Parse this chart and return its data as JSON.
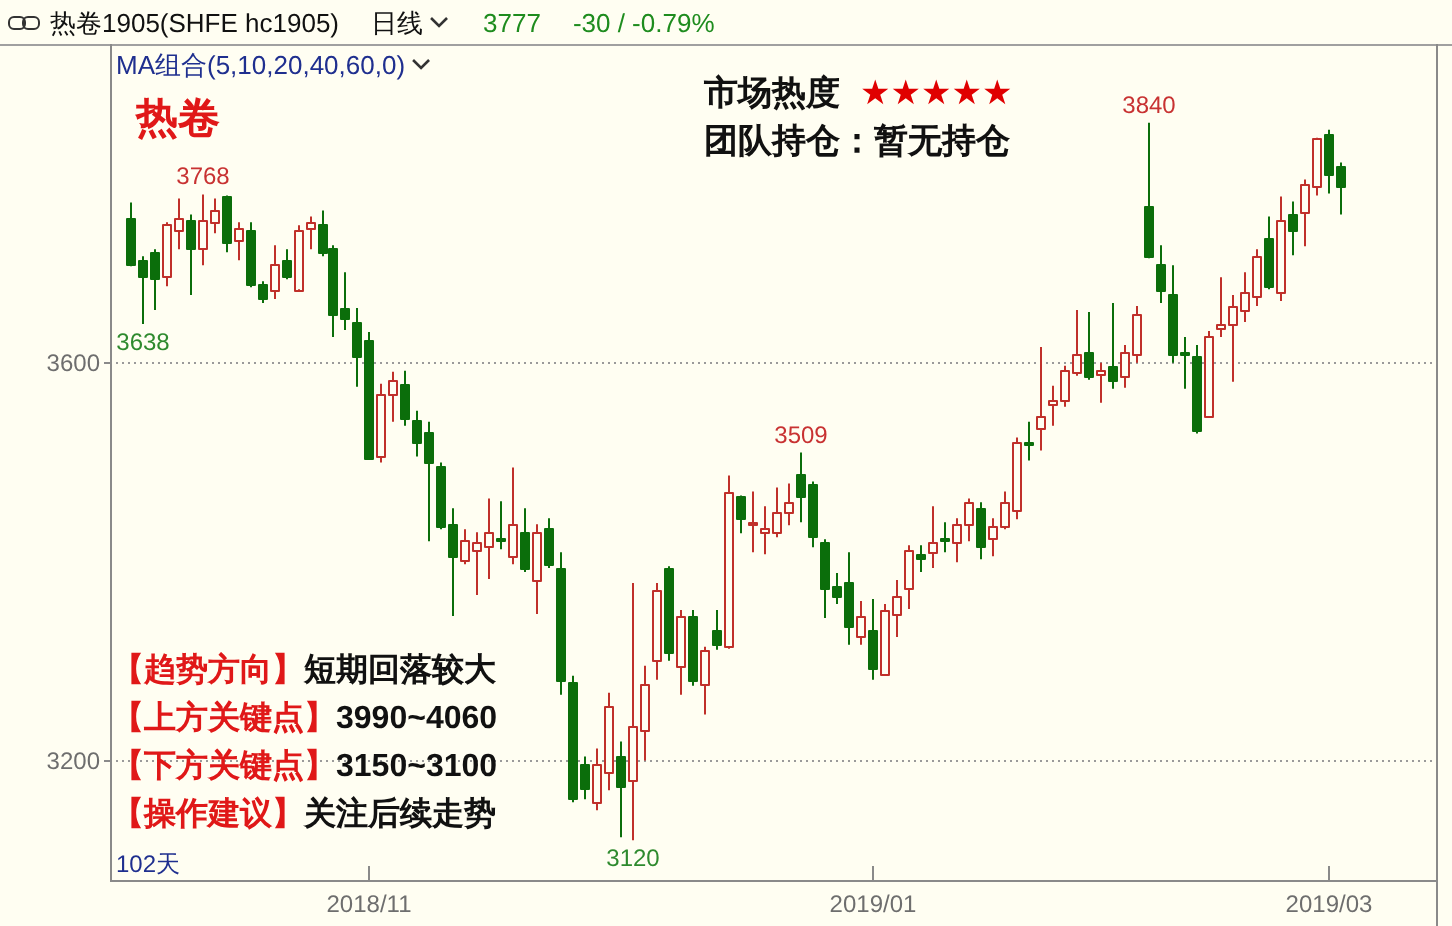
{
  "chart_data": {
    "type": "candlestick",
    "title": "热卷1905(SHFE hc1905)",
    "categories": [
      null,
      null,
      null,
      null,
      null,
      null,
      null,
      null,
      null,
      null,
      null,
      null,
      null,
      null,
      null,
      null,
      null,
      null,
      null,
      null,
      "2018/11",
      null,
      null,
      null,
      null,
      null,
      null,
      null,
      null,
      null,
      null,
      null,
      null,
      null,
      null,
      null,
      null,
      null,
      null,
      null,
      null,
      null,
      null,
      null,
      null,
      null,
      null,
      null,
      null,
      null,
      null,
      null,
      null,
      null,
      null,
      null,
      null,
      null,
      null,
      null,
      null,
      null,
      "2019/01",
      null,
      null,
      null,
      null,
      null,
      null,
      null,
      null,
      null,
      null,
      null,
      null,
      null,
      null,
      null,
      null,
      null,
      null,
      null,
      null,
      null,
      null,
      null,
      null,
      null,
      null,
      null,
      null,
      null,
      null,
      null,
      null,
      null,
      null,
      null,
      null,
      null,
      "2019/03",
      null
    ],
    "ohlc": [
      [
        3744,
        3760,
        3696,
        3698
      ],
      [
        3702,
        3706,
        3638,
        3686
      ],
      [
        3710,
        3713,
        3652,
        3684
      ],
      [
        3686,
        3740,
        3676,
        3738
      ],
      [
        3733,
        3764,
        3713,
        3744
      ],
      [
        3742,
        3748,
        3667,
        3715
      ],
      [
        3715,
        3768,
        3697,
        3743
      ],
      [
        3740,
        3764,
        3729,
        3752
      ],
      [
        3766,
        3767,
        3710,
        3721
      ],
      [
        3723,
        3740,
        3702,
        3735
      ],
      [
        3733,
        3740,
        3675,
        3679
      ],
      [
        3678,
        3681,
        3659,
        3665
      ],
      [
        3673,
        3717,
        3663,
        3698
      ],
      [
        3702,
        3713,
        3683,
        3686
      ],
      [
        3673,
        3737,
        3673,
        3732
      ],
      [
        3735,
        3746,
        3713,
        3740
      ],
      [
        3738,
        3752,
        3706,
        3711
      ],
      [
        3715,
        3717,
        3625,
        3648
      ],
      [
        3655,
        3690,
        3632,
        3645
      ],
      [
        3640,
        3654,
        3575,
        3605
      ],
      [
        3621,
        3630,
        3502,
        3503
      ],
      [
        3505,
        3578,
        3499,
        3568
      ],
      [
        3567,
        3590,
        3540,
        3582
      ],
      [
        3578,
        3591,
        3536,
        3544
      ],
      [
        3542,
        3551,
        3505,
        3520
      ],
      [
        3530,
        3540,
        3420,
        3499
      ],
      [
        3496,
        3499,
        3432,
        3436
      ],
      [
        3437,
        3453,
        3345,
        3406
      ],
      [
        3401,
        3432,
        3397,
        3421
      ],
      [
        3412,
        3429,
        3366,
        3419
      ],
      [
        3416,
        3463,
        3382,
        3429
      ],
      [
        3424,
        3460,
        3412,
        3422
      ],
      [
        3405,
        3494,
        3397,
        3437
      ],
      [
        3430,
        3453,
        3389,
        3393
      ],
      [
        3382,
        3437,
        3347,
        3429
      ],
      [
        3433,
        3443,
        3393,
        3397
      ],
      [
        3393,
        3409,
        3266,
        3280
      ],
      [
        3278,
        3285,
        3158,
        3162
      ],
      [
        3196,
        3204,
        3161,
        3173
      ],
      [
        3158,
        3212,
        3150,
        3196
      ],
      [
        3188,
        3268,
        3170,
        3255
      ],
      [
        3204,
        3219,
        3123,
        3174
      ],
      [
        3181,
        3378,
        3120,
        3235
      ],
      [
        3231,
        3295,
        3200,
        3277
      ],
      [
        3300,
        3378,
        3281,
        3372
      ],
      [
        3393,
        3395,
        3300,
        3308
      ],
      [
        3295,
        3351,
        3266,
        3345
      ],
      [
        3345,
        3351,
        3275,
        3281
      ],
      [
        3277,
        3314,
        3246,
        3310
      ],
      [
        3331,
        3351,
        3311,
        3316
      ],
      [
        3314,
        3486,
        3312,
        3470
      ],
      [
        3465,
        3466,
        3428,
        3443
      ],
      [
        3437,
        3470,
        3409,
        3439
      ],
      [
        3430,
        3455,
        3407,
        3434
      ],
      [
        3429,
        3474,
        3424,
        3449
      ],
      [
        3449,
        3478,
        3436,
        3459
      ],
      [
        3488,
        3509,
        3439,
        3466
      ],
      [
        3477,
        3480,
        3414,
        3426
      ],
      [
        3419,
        3422,
        3343,
        3374
      ],
      [
        3375,
        3388,
        3357,
        3366
      ],
      [
        3379,
        3409,
        3316,
        3335
      ],
      [
        3325,
        3360,
        3316,
        3345
      ],
      [
        3331,
        3362,
        3281,
        3293
      ],
      [
        3287,
        3357,
        3285,
        3351
      ],
      [
        3347,
        3381,
        3324,
        3365
      ],
      [
        3374,
        3416,
        3352,
        3412
      ],
      [
        3407,
        3416,
        3389,
        3403
      ],
      [
        3409,
        3455,
        3393,
        3420
      ],
      [
        3423,
        3439,
        3409,
        3422
      ],
      [
        3420,
        3443,
        3399,
        3438
      ],
      [
        3437,
        3463,
        3420,
        3459
      ],
      [
        3453,
        3459,
        3402,
        3416
      ],
      [
        3424,
        3443,
        3405,
        3436
      ],
      [
        3436,
        3470,
        3432,
        3459
      ],
      [
        3451,
        3524,
        3442,
        3519
      ],
      [
        3519,
        3540,
        3501,
        3517
      ],
      [
        3534,
        3615,
        3511,
        3546
      ],
      [
        3558,
        3576,
        3536,
        3561
      ],
      [
        3561,
        3596,
        3555,
        3592
      ],
      [
        3590,
        3652,
        3586,
        3608
      ],
      [
        3609,
        3650,
        3582,
        3586
      ],
      [
        3588,
        3599,
        3559,
        3591
      ],
      [
        3595,
        3659,
        3573,
        3581
      ],
      [
        3586,
        3617,
        3574,
        3609
      ],
      [
        3608,
        3656,
        3599,
        3649
      ],
      [
        3756,
        3840,
        3704,
        3706
      ],
      [
        3698,
        3717,
        3659,
        3673
      ],
      [
        3669,
        3697,
        3599,
        3608
      ],
      [
        3609,
        3625,
        3573,
        3607
      ],
      [
        3605,
        3617,
        3528,
        3532
      ],
      [
        3545,
        3631,
        3545,
        3626
      ],
      [
        3634,
        3685,
        3625,
        3639
      ],
      [
        3638,
        3667,
        3580,
        3657
      ],
      [
        3653,
        3690,
        3640,
        3671
      ],
      [
        3667,
        3713,
        3656,
        3706
      ],
      [
        3725,
        3746,
        3673,
        3676
      ],
      [
        3671,
        3766,
        3661,
        3743
      ],
      [
        3748,
        3761,
        3707,
        3733
      ],
      [
        3750,
        3783,
        3716,
        3779
      ],
      [
        3777,
        3825,
        3767,
        3824
      ],
      [
        3829,
        3833,
        3769,
        3788
      ],
      [
        3797,
        3800,
        3748,
        3777
      ]
    ],
    "ylim": [
      3080,
      3915
    ],
    "yticks": [
      3200,
      3600
    ],
    "grid": "y",
    "annotations": [
      "日线",
      "3777",
      "-30 / -0.79%",
      "MA组合(5,10,20,40,60,0)",
      "热卷",
      "市场热度",
      "★★★★★",
      "团队持仓：暂无持仓",
      "【趋势方向】",
      "短期回落较大",
      "【上方关键点】",
      "3990~4060",
      "【下方关键点】",
      "3150~3100",
      "【操作建议】",
      "关注后续走势",
      "102天",
      {
        "text": "3768",
        "y": 3768
      },
      {
        "text": "3840",
        "y": 3840
      },
      {
        "text": "3509",
        "y": 3509
      },
      {
        "text": "3638",
        "y": 3638
      },
      {
        "text": "3120",
        "y": 3120
      }
    ]
  }
}
